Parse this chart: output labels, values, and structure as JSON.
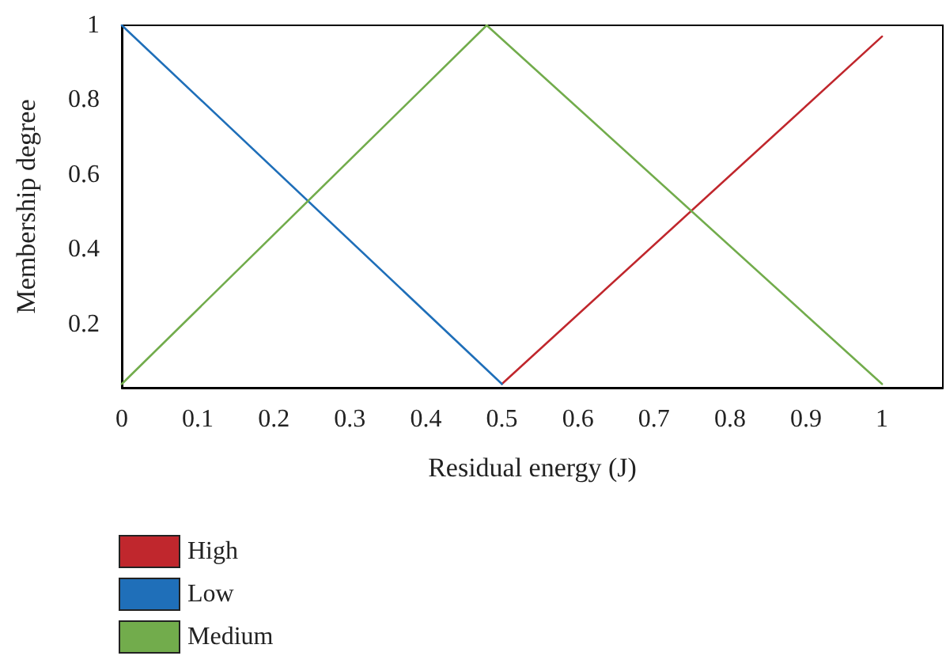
{
  "chart_data": {
    "type": "line",
    "xlabel": "Residual energy (J)",
    "ylabel": "Membership degree",
    "xlim": [
      0,
      1.08
    ],
    "xticks": [
      0,
      0.1,
      0.2,
      0.3,
      0.4,
      0.5,
      0.6,
      0.7,
      0.8,
      0.9,
      1
    ],
    "ylim": [
      0.03,
      1
    ],
    "yticks": [
      0.2,
      0.4,
      0.6,
      0.8,
      1
    ],
    "series": [
      {
        "name": "High",
        "color": "#c0272d",
        "x": [
          0.5,
          1
        ],
        "values": [
          0.04,
          0.97
        ]
      },
      {
        "name": "Low",
        "color": "#1f6fb9",
        "x": [
          0,
          0.5
        ],
        "values": [
          1,
          0.04
        ]
      },
      {
        "name": "Medium",
        "color": "#72ac4c",
        "x": [
          0,
          0.48,
          1
        ],
        "values": [
          0.04,
          1,
          0.04
        ]
      }
    ],
    "grid": false,
    "legend": "bottom left",
    "marker": "none",
    "line_style": "solid"
  }
}
